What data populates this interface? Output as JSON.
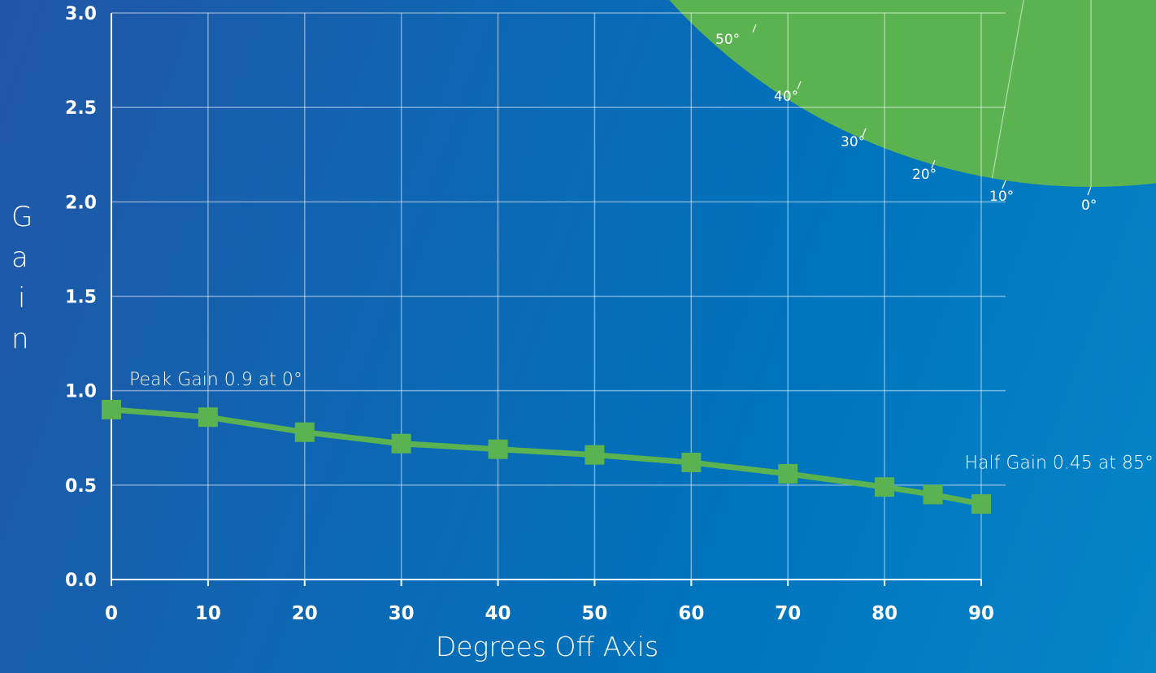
{
  "chart_data": {
    "type": "line",
    "title": "",
    "xlabel": "Degrees Off Axis",
    "ylabel": "Gain",
    "xlim": [
      0,
      90
    ],
    "ylim": [
      0,
      3.0
    ],
    "x_ticks": [
      "0",
      "10",
      "20",
      "30",
      "40",
      "50",
      "60",
      "70",
      "80",
      "90"
    ],
    "y_ticks": [
      "0.0",
      "0.5",
      "1.0",
      "1.5",
      "2.0",
      "2.5",
      "3.0"
    ],
    "grid": true,
    "series": [
      {
        "x": [
          0,
          10,
          20,
          30,
          40,
          50,
          60,
          70,
          80,
          85,
          90
        ],
        "values": [
          0.9,
          0.86,
          0.78,
          0.72,
          0.69,
          0.66,
          0.62,
          0.56,
          0.49,
          0.45,
          0.4
        ]
      }
    ],
    "annotations": [
      {
        "text": "Peak Gain 0.9 at 0°",
        "x": 0,
        "y": 0.9
      },
      {
        "text": "Half Gain 0.45 at 85°",
        "x": 85,
        "y": 0.45
      }
    ],
    "polar_inset": {
      "angle_labels": [
        "50°",
        "40°",
        "30°",
        "20°",
        "10°",
        "0°"
      ]
    }
  },
  "colors": {
    "series": "#5ab250",
    "grid": "rgba(255,255,255,0.45)",
    "text": "#ffffff"
  }
}
